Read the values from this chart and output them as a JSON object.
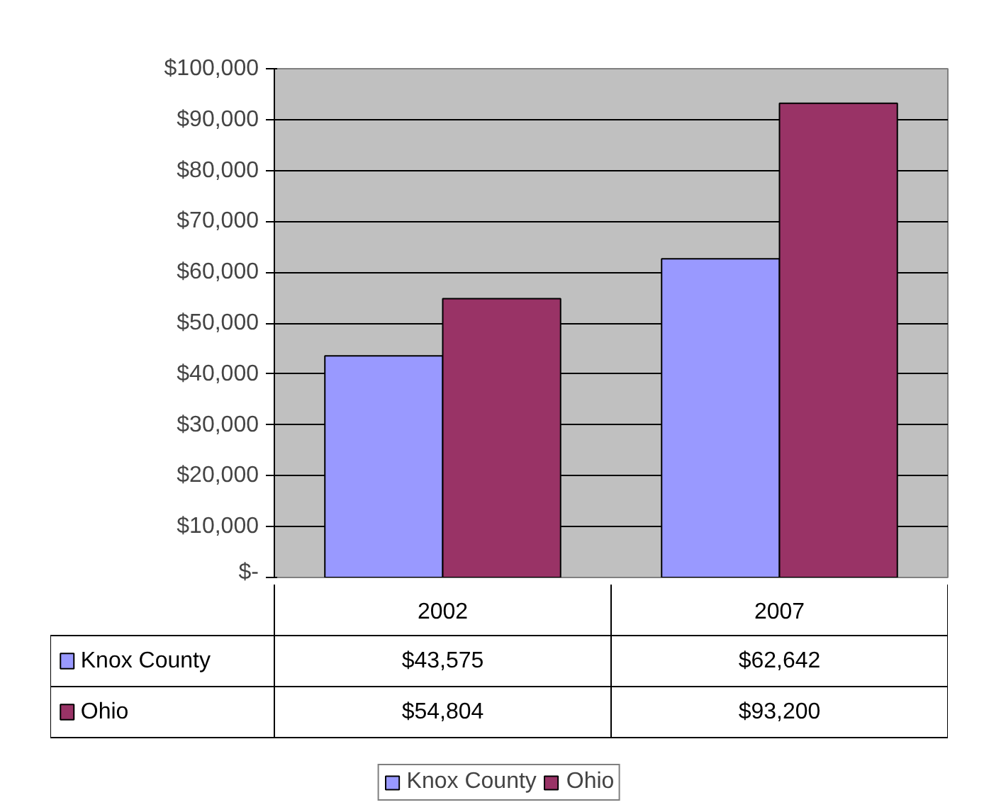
{
  "chart_data": {
    "type": "bar",
    "categories": [
      "2002",
      "2007"
    ],
    "series": [
      {
        "name": "Knox County",
        "color": "#9999ff",
        "values": [
          43575,
          62642
        ],
        "value_labels": [
          "$43,575",
          "$62,642"
        ]
      },
      {
        "name": "Ohio",
        "color": "#993366",
        "values": [
          54804,
          93200
        ],
        "value_labels": [
          "$54,804",
          "$93,200"
        ]
      }
    ],
    "ylim": [
      0,
      100000
    ],
    "yticks": [
      {
        "value": 0,
        "label": "$-"
      },
      {
        "value": 10000,
        "label": "$10,000"
      },
      {
        "value": 20000,
        "label": "$20,000"
      },
      {
        "value": 30000,
        "label": "$30,000"
      },
      {
        "value": 40000,
        "label": "$40,000"
      },
      {
        "value": 50000,
        "label": "$50,000"
      },
      {
        "value": 60000,
        "label": "$60,000"
      },
      {
        "value": 70000,
        "label": "$70,000"
      },
      {
        "value": 80000,
        "label": "$80,000"
      },
      {
        "value": 90000,
        "label": "$90,000"
      },
      {
        "value": 100000,
        "label": "$100,000"
      }
    ],
    "grid": "y",
    "legend": "bottom"
  }
}
